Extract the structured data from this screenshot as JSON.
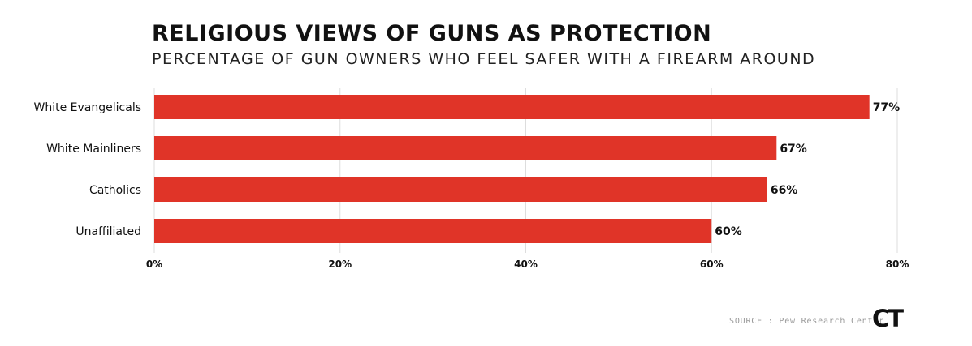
{
  "header": {
    "title": "RELIGIOUS VIEWS OF GUNS AS PROTECTION",
    "subtitle": "PERCENTAGE OF GUN OWNERS WHO FEEL SAFER WITH A FIREARM AROUND"
  },
  "footer": {
    "source": "SOURCE : Pew Research Center",
    "logo_text": "CT"
  },
  "colors": {
    "bar": "#E03428",
    "grid": "#dddddd",
    "text": "#111111"
  },
  "chart_data": {
    "type": "bar",
    "orientation": "horizontal",
    "categories": [
      "White Evangelicals",
      "White Mainliners",
      "Catholics",
      "Unaffiliated"
    ],
    "values": [
      77,
      67,
      66,
      60
    ],
    "value_labels": [
      "77%",
      "67%",
      "66%",
      "60%"
    ],
    "xlim": [
      0,
      80
    ],
    "xticks": [
      0,
      20,
      40,
      60,
      80
    ],
    "xtick_labels": [
      "0%",
      "20%",
      "40%",
      "60%",
      "80%"
    ],
    "grid": true
  }
}
